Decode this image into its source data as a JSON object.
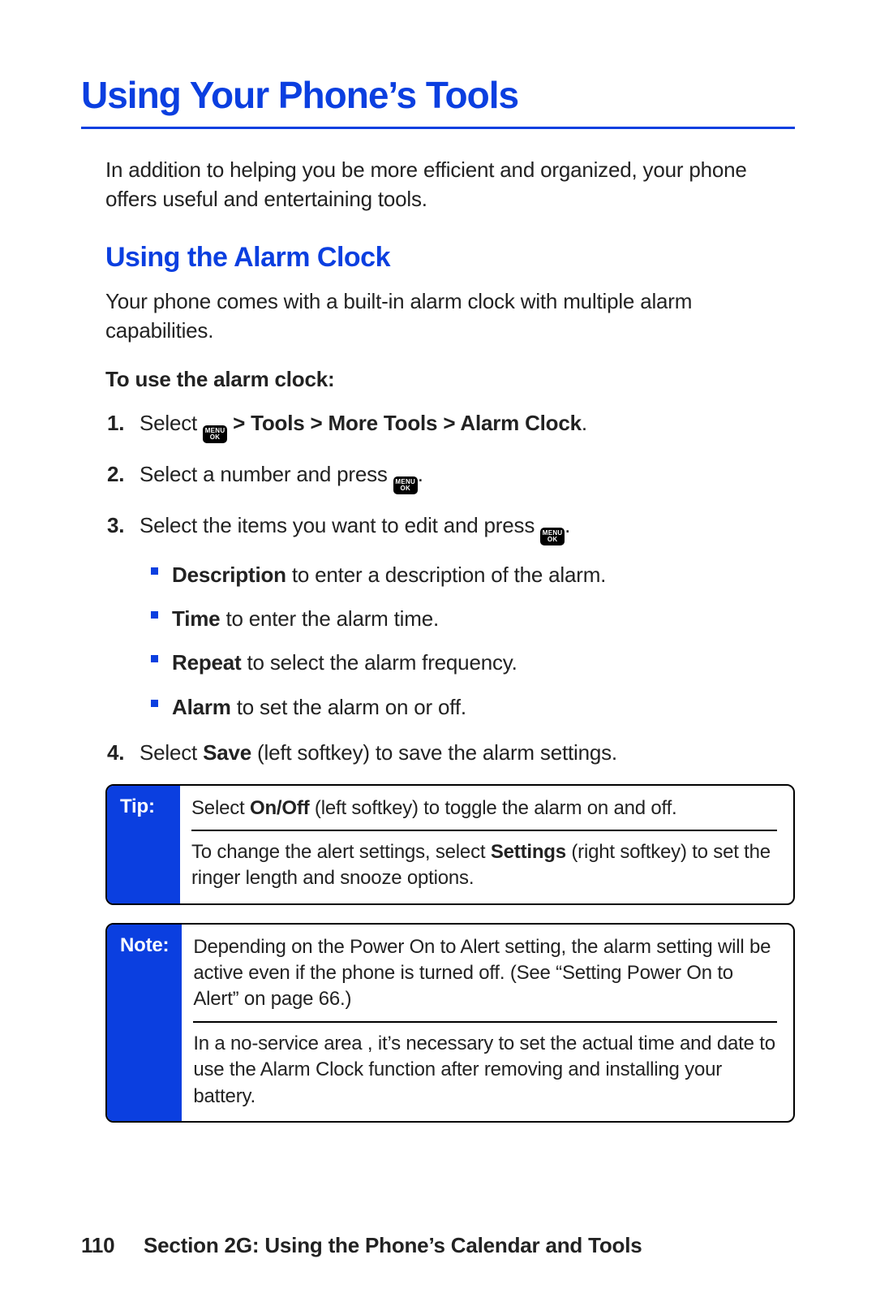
{
  "colors": {
    "accent": "#0b3fe0",
    "text": "#222222",
    "background": "#ffffff",
    "rule": "#0b3fe0",
    "callout_border": "#000000",
    "callout_label_bg": "#0b3fe0",
    "callout_label_text": "#ffffff",
    "key_bg": "#000000",
    "key_text": "#ffffff",
    "bullet": "#0b3fe0"
  },
  "typography": {
    "chapter_title_size": 46,
    "section_title_size": 34,
    "body_size": 26,
    "callout_size": 24,
    "font_family": "Arial Narrow / Helvetica Condensed",
    "font_stretch": "condensed"
  },
  "key": {
    "line1": "MENU",
    "line2": "OK"
  },
  "chapter_title": "Using Your Phone’s Tools",
  "intro": "In addition to helping you be more efficient and organized, your phone offers useful and entertaining tools.",
  "section": {
    "title": "Using the Alarm Clock",
    "lead": "Your phone comes with a built-in alarm clock with multiple alarm capabilities.",
    "howto_label": "To use the alarm clock:"
  },
  "steps": {
    "s1": {
      "num": "1.",
      "pre": "Select ",
      "path": " > Tools > More Tools > Alarm Clock",
      "post": "."
    },
    "s2": {
      "num": "2.",
      "pre": "Select a number and press ",
      "post": "."
    },
    "s3": {
      "num": "3.",
      "pre": "Select the items you want to edit and press ",
      "post": "."
    },
    "s4": {
      "num": "4.",
      "pre": "Select ",
      "bold": "Save",
      "post": " (left softkey) to save the alarm settings."
    }
  },
  "subitems": {
    "a": {
      "term": "Description",
      "rest": " to enter a description of the alarm."
    },
    "b": {
      "term": "Time",
      "rest": " to enter the alarm time."
    },
    "c": {
      "term": "Repeat",
      "rest": " to select the alarm frequency."
    },
    "d": {
      "term": "Alarm",
      "rest": " to set the alarm on or off."
    }
  },
  "tip": {
    "label": "Tip:",
    "p1_pre": "Select ",
    "p1_bold": "On/Off",
    "p1_post": " (left softkey) to toggle the alarm on and off.",
    "p2_pre": "To change the alert settings, select ",
    "p2_bold": "Settings",
    "p2_post": " (right softkey) to set the ringer length and snooze options."
  },
  "note": {
    "label": "Note:",
    "p1": "Depending on the Power On to Alert setting, the alarm setting will be active even if the phone is turned off. (See “Setting Power On to Alert” on page 66.)",
    "p2": "In a no-service area , it’s necessary to set the actual time and date to use the Alarm Clock function after removing and installing your battery."
  },
  "footer": {
    "page_number": "110",
    "section_label": "Section 2G: Using the Phone’s Calendar and Tools"
  }
}
